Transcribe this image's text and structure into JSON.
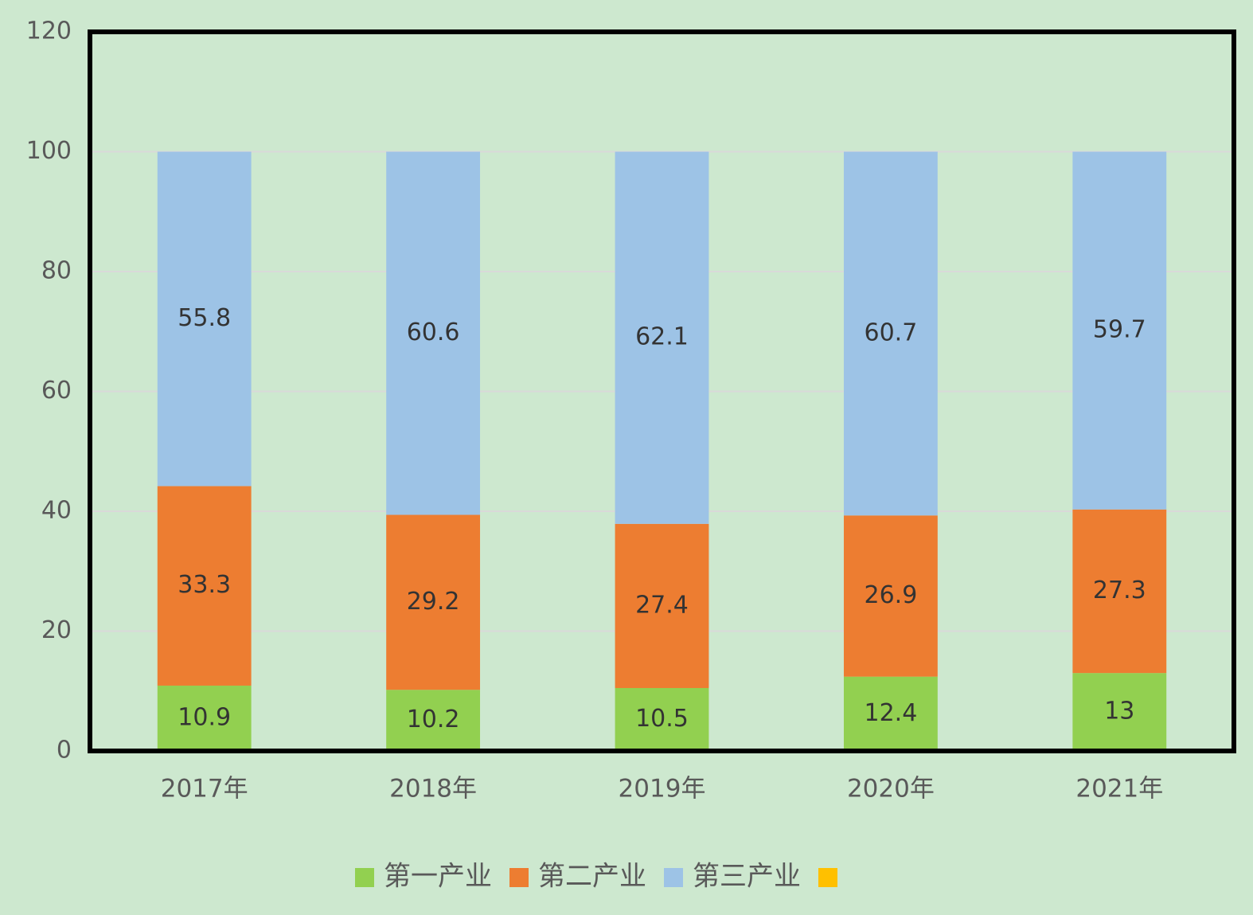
{
  "chart_data": {
    "type": "stacked_bar",
    "categories": [
      "2017年",
      "2018年",
      "2019年",
      "2020年",
      "2021年"
    ],
    "series": [
      {
        "name": "第一产业",
        "color": "#92d050",
        "values": [
          10.9,
          10.2,
          10.5,
          12.4,
          13
        ]
      },
      {
        "name": "第二产业",
        "color": "#ed7d31",
        "values": [
          33.3,
          29.2,
          27.4,
          26.9,
          27.3
        ]
      },
      {
        "name": "第三产业",
        "color": "#9dc3e6",
        "values": [
          55.8,
          60.6,
          62.1,
          60.7,
          59.7
        ]
      },
      {
        "name": null,
        "color": "#ffc000",
        "values": [
          null,
          null,
          null,
          null,
          null
        ]
      }
    ],
    "ylim": [
      0,
      120
    ],
    "yticks": [
      0,
      20,
      40,
      60,
      80,
      100,
      120
    ],
    "grid": true,
    "legend": "bottom"
  }
}
